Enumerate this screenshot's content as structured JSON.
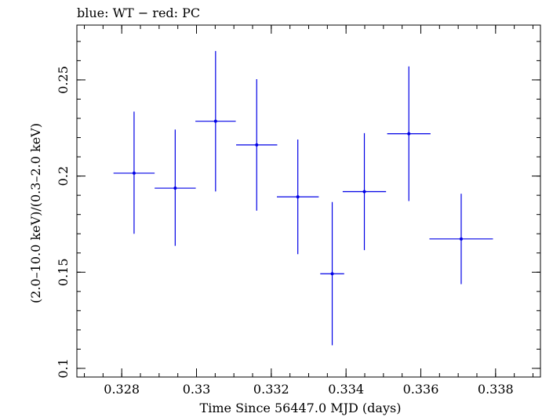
{
  "chart_data": {
    "type": "scatter",
    "title": "blue: WT − red: PC",
    "xlabel": "Time Since 56447.0 MJD (days)",
    "ylabel": "(2.0–10.0 keV)/(0.3–2.0 keV)",
    "xlim": [
      0.3268,
      0.3392
    ],
    "ylim": [
      0.0955,
      0.2785
    ],
    "x_ticks": [
      {
        "value": 0.328,
        "label": "0.328"
      },
      {
        "value": 0.33,
        "label": "0.33"
      },
      {
        "value": 0.332,
        "label": "0.332"
      },
      {
        "value": 0.334,
        "label": "0.334"
      },
      {
        "value": 0.336,
        "label": "0.336"
      },
      {
        "value": 0.338,
        "label": "0.338"
      }
    ],
    "y_ticks": [
      {
        "value": 0.1,
        "label": "0.1"
      },
      {
        "value": 0.15,
        "label": "0.15"
      },
      {
        "value": 0.2,
        "label": "0.2"
      },
      {
        "value": 0.25,
        "label": "0.25"
      }
    ],
    "x_minor_step": 0.0005,
    "y_minor_step": 0.01,
    "grid": false,
    "series": [
      {
        "color": "#0000e6",
        "points": [
          {
            "x": 0.32833,
            "xerr": 0.00055,
            "y": 0.2015,
            "yerr_low": 0.0315,
            "yerr_high": 0.032
          },
          {
            "x": 0.32943,
            "xerr": 0.00055,
            "y": 0.1937,
            "yerr_low": 0.03,
            "yerr_high": 0.0305
          },
          {
            "x": 0.33051,
            "xerr": 0.00054,
            "y": 0.2285,
            "yerr_low": 0.0365,
            "yerr_high": 0.0365
          },
          {
            "x": 0.33161,
            "xerr": 0.00055,
            "y": 0.2162,
            "yerr_low": 0.0342,
            "yerr_high": 0.0342
          },
          {
            "x": 0.33271,
            "xerr": 0.00056,
            "y": 0.1892,
            "yerr_low": 0.0298,
            "yerr_high": 0.0298
          },
          {
            "x": 0.33363,
            "xerr": 0.00032,
            "y": 0.1492,
            "yerr_low": 0.0372,
            "yerr_high": 0.0373
          },
          {
            "x": 0.33449,
            "xerr": 0.00058,
            "y": 0.1919,
            "yerr_low": 0.0304,
            "yerr_high": 0.0304
          },
          {
            "x": 0.33568,
            "xerr": 0.00058,
            "y": 0.222,
            "yerr_low": 0.035,
            "yerr_high": 0.035
          },
          {
            "x": 0.33708,
            "xerr": 0.00085,
            "y": 0.1673,
            "yerr_low": 0.0235,
            "yerr_high": 0.0235
          }
        ]
      }
    ]
  }
}
